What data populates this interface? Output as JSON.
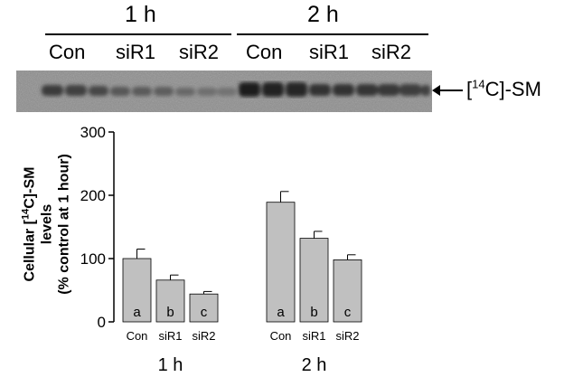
{
  "blot": {
    "groups": [
      {
        "time": "1 h",
        "conditions": [
          "Con",
          "siR1",
          "siR2"
        ]
      },
      {
        "time": "2 h",
        "conditions": [
          "Con",
          "siR1",
          "siR2"
        ]
      }
    ],
    "band_label": {
      "prefix": "[",
      "superscript": "14",
      "suffix": "C]-SM"
    }
  },
  "chart_data": {
    "type": "bar",
    "ylabel": {
      "line1_prefix": "Cellular [",
      "line1_superscript": "14",
      "line1_suffix": "C]-SM",
      "line2": "levels",
      "line3": "(% control at 1 hour)"
    },
    "ylim": [
      0,
      300
    ],
    "yticks": [
      0,
      100,
      200,
      300
    ],
    "groups": [
      {
        "label": "1 h",
        "categories": [
          "Con",
          "siR1",
          "siR2"
        ],
        "values": [
          100,
          66,
          44
        ],
        "errors": [
          15,
          8,
          4
        ],
        "letters": [
          "a",
          "b",
          "c"
        ]
      },
      {
        "label": "2 h",
        "categories": [
          "Con",
          "siR1",
          "siR2"
        ],
        "values": [
          189,
          132,
          98
        ],
        "errors": [
          17,
          11,
          8
        ],
        "letters": [
          "a",
          "b",
          "c"
        ]
      }
    ],
    "bar_color": "#c0c0c0",
    "grid": false
  }
}
